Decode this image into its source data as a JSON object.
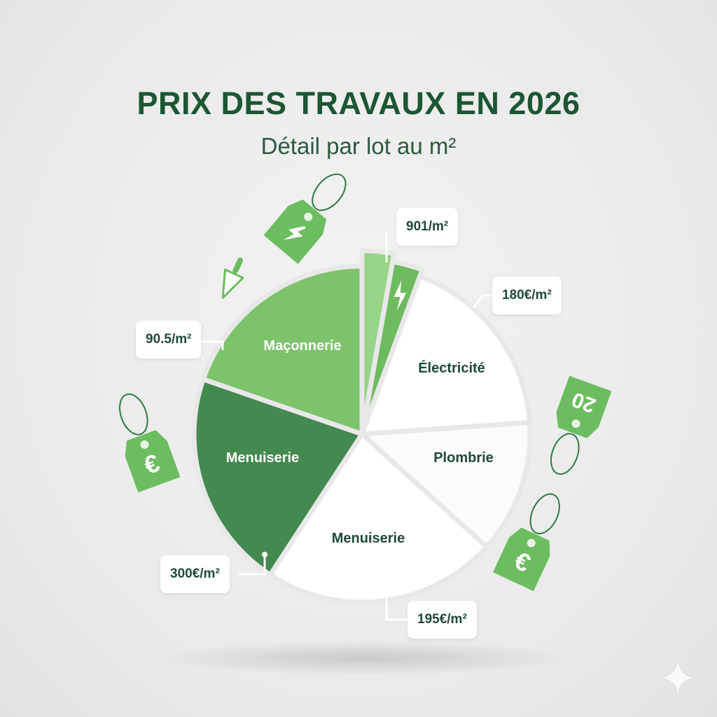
{
  "title": "PRIX DES TRAVAUX EN 2026",
  "subtitle": "Détail par lot au m²",
  "colors": {
    "title": "#1c5634",
    "dark_green": "#44894f",
    "mid_green": "#7cc36c",
    "light_green": "#96d488",
    "white": "#ffffff",
    "background": "#ececec"
  },
  "chart_data": {
    "type": "pie",
    "title": "PRIX DES TRAVAUX EN 2026",
    "subtitle": "Détail par lot au m²",
    "legend": "none",
    "slices": [
      {
        "label": "",
        "share_pct": 2.8,
        "color": "#96d488",
        "callout": "901/m²",
        "icon": ""
      },
      {
        "label": "",
        "share_pct": 2.8,
        "color": "#6dbb5e",
        "callout": "",
        "icon": "lightning-icon"
      },
      {
        "label": "Électricité",
        "share_pct": 18.3,
        "color": "#ffffff",
        "callout": "180€/m²"
      },
      {
        "label": "Plombrie",
        "share_pct": 12.8,
        "color": "#fbfbfb",
        "callout": ""
      },
      {
        "label": "Menuiserie",
        "share_pct": 22.5,
        "color": "#ffffff",
        "callout": "195€/m²"
      },
      {
        "label": "Menuiserie",
        "share_pct": 21.1,
        "color": "#44894f",
        "callout": "300€/m²"
      },
      {
        "label": "Maçonnerie",
        "share_pct": 19.7,
        "color": "#7cc36c",
        "callout": "90.5/m²"
      }
    ]
  },
  "decorations": {
    "tags": [
      {
        "icon": "lightning-icon",
        "text": ""
      },
      {
        "icon": "euro-icon",
        "text": "€"
      },
      {
        "icon": "price-tag-icon",
        "text": "20"
      },
      {
        "icon": "euro-icon",
        "text": "€"
      }
    ],
    "trowel": "trowel-icon",
    "watermark": "sparkle-icon"
  }
}
